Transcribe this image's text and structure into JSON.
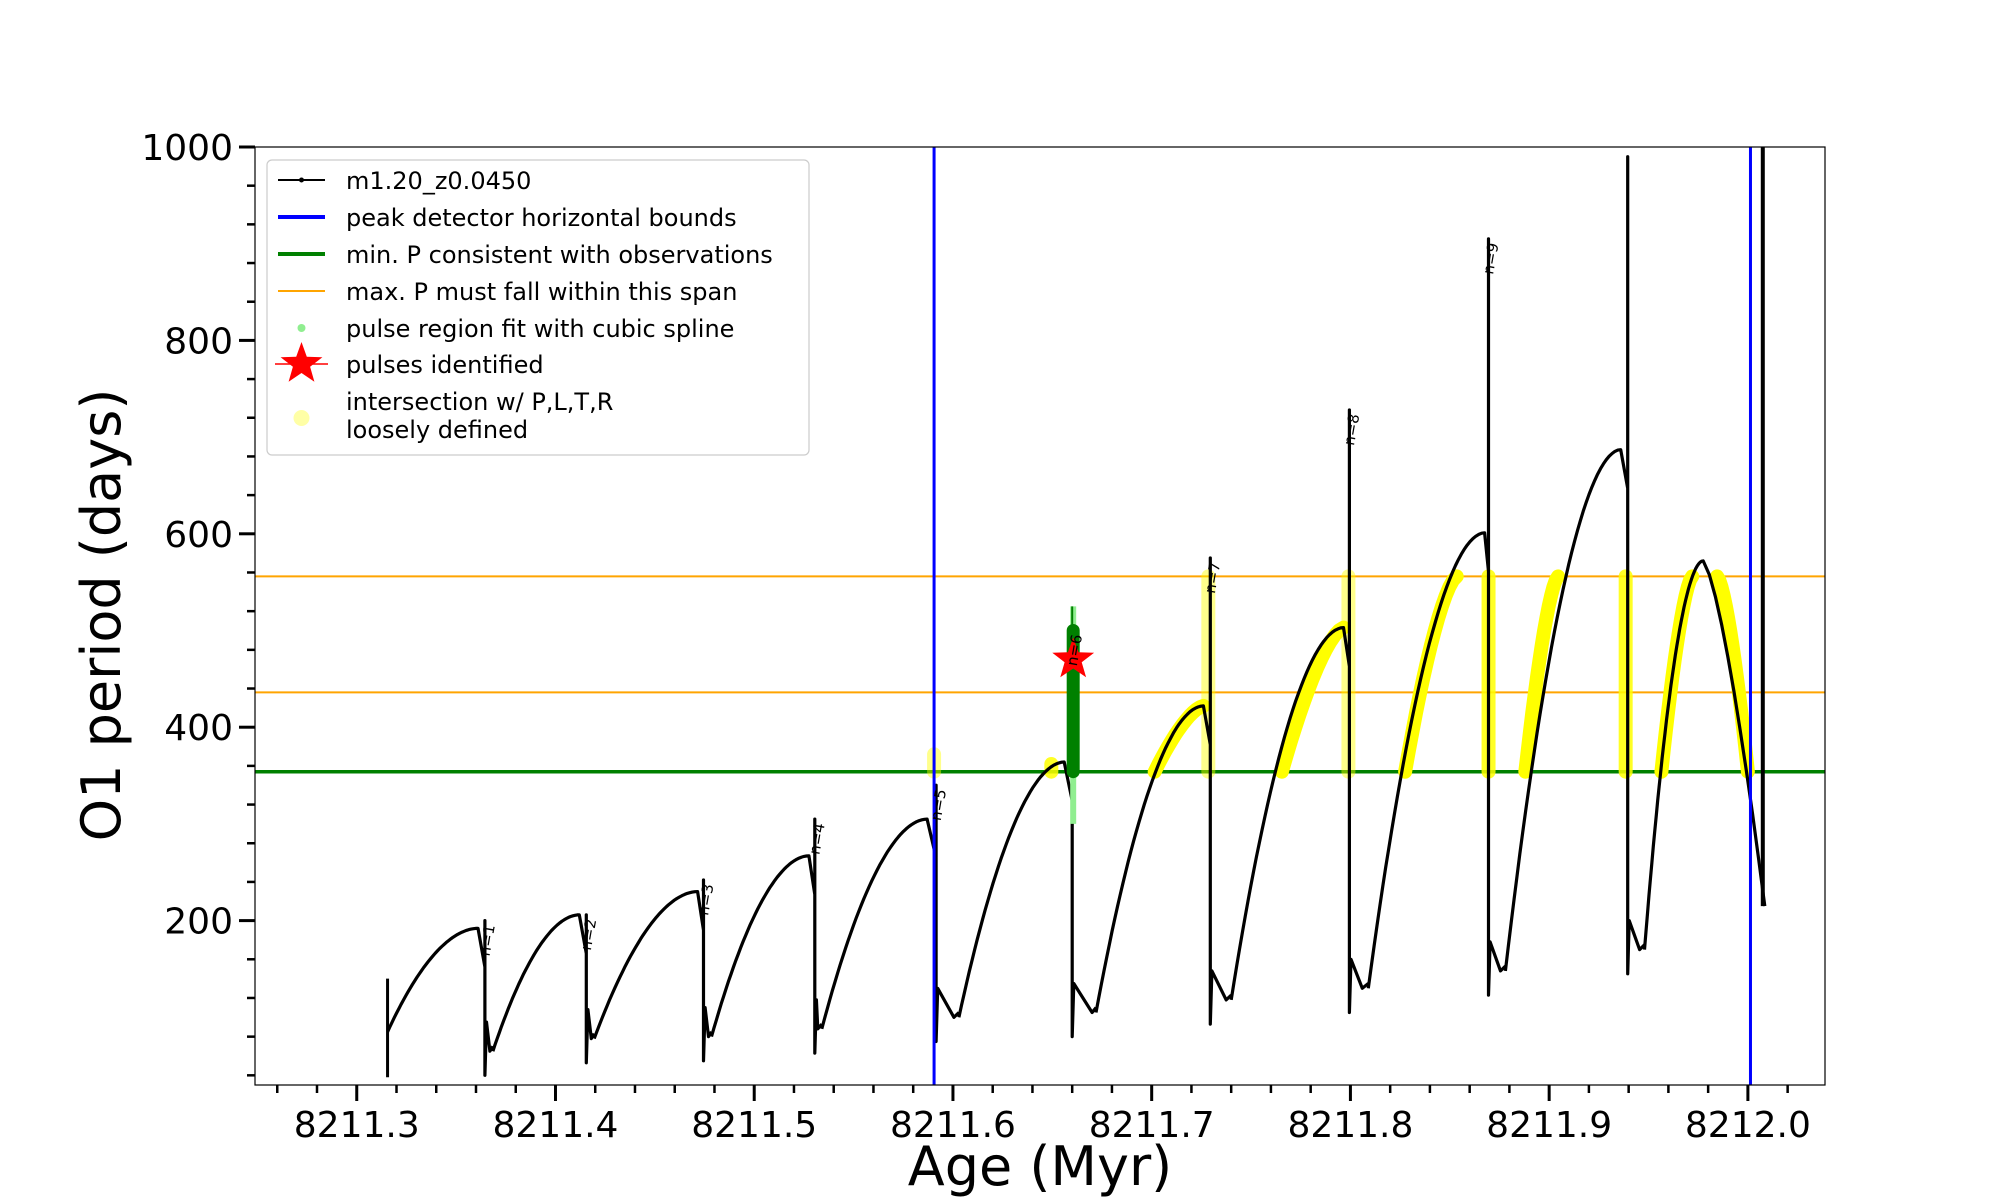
{
  "chart_data": {
    "type": "line",
    "xlabel": "Age (Myr)",
    "ylabel": "O1 period (days)",
    "xlim": [
      8211.2488,
      8212.0388
    ],
    "ylim": [
      30,
      1000
    ],
    "x_ticks": [
      8211.3,
      8211.4,
      8211.5,
      8211.6,
      8211.7,
      8211.8,
      8211.9,
      8212.0
    ],
    "x_tick_labels": [
      "8211.3",
      "8211.4",
      "8211.5",
      "8211.6",
      "8211.7",
      "8211.8",
      "8211.9",
      "8212.0"
    ],
    "y_ticks": [
      200,
      400,
      600,
      800,
      1000
    ],
    "y_tick_labels": [
      "200",
      "400",
      "600",
      "800",
      "1000"
    ],
    "grid": false,
    "legend_position": "top-left",
    "legend": [
      {
        "label": "m1.20_z0.0450",
        "marker": "line-dot",
        "color": "#000000"
      },
      {
        "label": "peak detector horizontal bounds",
        "marker": "line",
        "color": "#0000ff"
      },
      {
        "label": "min. P consistent with observations",
        "marker": "line",
        "color": "#008000"
      },
      {
        "label": "max. P must fall within this span",
        "marker": "line",
        "color": "#ffa500"
      },
      {
        "label": "pulse region fit with cubic spline",
        "marker": "dot",
        "color": "#90ee90"
      },
      {
        "label": "pulses identified",
        "marker": "star",
        "color": "#ff0000"
      },
      {
        "label": "intersection w/ P,L,T,R\nloosely defined",
        "marker": "dot",
        "color": "#ffff00"
      }
    ],
    "vertical_lines": [
      {
        "x": 8211.5905,
        "color": "#0000ff"
      },
      {
        "x": 8212.0013,
        "color": "#0000ff"
      }
    ],
    "horizontal_lines": [
      {
        "y": 354,
        "color": "#008000"
      },
      {
        "y": 436,
        "color": "#ffa500"
      },
      {
        "y": 556,
        "color": "#ffa500"
      }
    ],
    "pulses": [
      {
        "label": "n=1",
        "x_start": 8211.3155,
        "x_peak": 8211.361,
        "peak": 192,
        "x_drop": 8211.3645,
        "spike": 200,
        "x_min": 8211.367,
        "trough": 65
      },
      {
        "label": "n=2",
        "x_start": 8211.3685,
        "x_peak": 8211.412,
        "peak": 206,
        "x_drop": 8211.4155,
        "spike": 206,
        "x_min": 8211.418,
        "trough": 78
      },
      {
        "label": "n=3",
        "x_start": 8211.4195,
        "x_peak": 8211.4715,
        "peak": 230,
        "x_drop": 8211.4745,
        "spike": 242,
        "x_min": 8211.477,
        "trough": 80
      },
      {
        "label": "n=4",
        "x_start": 8211.4785,
        "x_peak": 8211.5275,
        "peak": 267,
        "x_drop": 8211.5305,
        "spike": 305,
        "x_min": 8211.532,
        "trough": 88
      },
      {
        "label": "n=5",
        "x_start": 8211.534,
        "x_peak": 8211.587,
        "peak": 305,
        "x_drop": 8211.5915,
        "spike": 340,
        "x_min": 8211.6005,
        "trough": 100
      },
      {
        "label": "n=6",
        "x_start": 8211.603,
        "x_peak": 8211.656,
        "peak": 364,
        "x_drop": 8211.66,
        "spike": 500,
        "x_min": 8211.67,
        "trough": 105
      },
      {
        "label": "n=7",
        "x_start": 8211.672,
        "x_peak": 8211.726,
        "peak": 422,
        "x_drop": 8211.7295,
        "spike": 575,
        "x_min": 8211.7375,
        "trough": 118
      },
      {
        "label": "n=8",
        "x_start": 8211.74,
        "x_peak": 8211.7965,
        "peak": 503,
        "x_drop": 8211.7995,
        "spike": 728,
        "x_min": 8211.806,
        "trough": 130
      },
      {
        "label": "n=9",
        "x_start": 8211.809,
        "x_peak": 8211.8675,
        "peak": 601,
        "x_drop": 8211.8695,
        "spike": 905,
        "x_min": 8211.8755,
        "trough": 148
      },
      {
        "label": "",
        "x_start": 8211.878,
        "x_peak": 8211.936,
        "peak": 687,
        "x_drop": 8211.9395,
        "spike": 990,
        "x_min": 8211.9455,
        "trough": 170
      },
      {
        "label": "",
        "x_start": 8211.948,
        "x_peak": 8211.9775,
        "peak": 572,
        "x_drop": 8211.988,
        "spike": 0,
        "x_min": 8212.0085,
        "trough": 215
      }
    ],
    "end_spike": {
      "x": 8212.0075,
      "top": 1000,
      "bottom": 215
    },
    "cubic_spline_region": {
      "x": 8211.6605,
      "y_min": 300,
      "y_max": 525
    },
    "min_p_band": {
      "x": 8211.6605,
      "y_min": 354,
      "y_max": 500
    },
    "pulses_identified": [
      {
        "x": 8211.6605,
        "y": 470
      }
    ],
    "yellow_intersections": [
      {
        "x": 8211.5905,
        "y_min": 354,
        "y_max": 372,
        "faint": true
      },
      {
        "x": 8211.6495,
        "y_min": 354,
        "y_max": 362,
        "faint": false
      },
      {
        "x_from": 8211.7015,
        "x_to": 8211.726,
        "y_from": 354,
        "y_to": 422,
        "faint": false
      },
      {
        "x": 8211.7285,
        "y_min": 354,
        "y_max": 556,
        "faint": true
      },
      {
        "x_from": 8211.7655,
        "x_to": 8211.7965,
        "y_from": 354,
        "y_to": 503,
        "faint": false
      },
      {
        "x": 8211.799,
        "y_min": 354,
        "y_max": 556,
        "faint": true
      },
      {
        "x_from": 8211.8275,
        "x_to": 8211.8535,
        "y_from": 354,
        "y_to": 556,
        "faint": false
      },
      {
        "x": 8211.8695,
        "y_min": 354,
        "y_max": 556,
        "faint": false
      },
      {
        "x_from": 8211.888,
        "x_to": 8211.9045,
        "y_from": 354,
        "y_to": 556,
        "faint": false
      },
      {
        "x": 8211.9385,
        "y_min": 354,
        "y_max": 556,
        "faint": false
      },
      {
        "x_from": 8211.9565,
        "x_to": 8211.972,
        "y_from": 354,
        "y_to": 556,
        "faint": false
      },
      {
        "x_from": 8211.9845,
        "x_to": 8212.0,
        "y_from": 556,
        "y_to": 354,
        "faint": false
      }
    ]
  }
}
